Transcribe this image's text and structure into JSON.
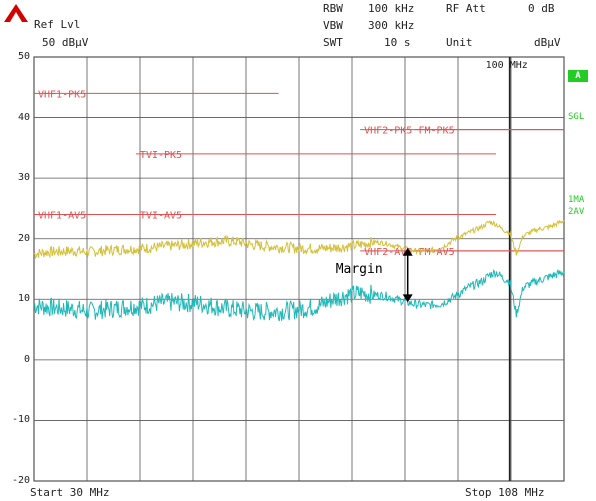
{
  "header": {
    "ref_lvl_label": "Ref Lvl",
    "ref_lvl_value": "50 dBµV",
    "rbw_label": "RBW",
    "rbw_value": "100 kHz",
    "vbw_label": "VBW",
    "vbw_value": "300 kHz",
    "swt_label": "SWT",
    "swt_value": "10 s",
    "rfatt_label": "RF Att",
    "rfatt_value": "0 dB",
    "unit_label": "Unit",
    "unit_value": "dBµV"
  },
  "side_labels": {
    "a": "A",
    "sgl": "SGL",
    "trace1": "1MA",
    "trace2": "2AV"
  },
  "colors": {
    "pk_trace": "#d4c038",
    "av_trace": "#20b8b8",
    "limit": "#e05050",
    "grid": "#555555",
    "side": "#22cc22"
  },
  "chart_data": {
    "type": "line",
    "x_unit": "MHz",
    "xlim": [
      30,
      108
    ],
    "ylim": [
      -20,
      50
    ],
    "yticks": [
      50,
      40,
      30,
      20,
      10,
      0,
      -10,
      -20
    ],
    "ytick_labels": [
      "50",
      "40",
      "30",
      "20",
      "10",
      "0",
      "-10",
      "-20"
    ],
    "x_start_label": "Start 30 MHz",
    "x_stop_label": "Stop 108 MHz",
    "x_marker_label": "100 MHz",
    "x_marker_value": 100,
    "annotation": "Margin",
    "annotation_x": 85,
    "annotation_y_top": 18.5,
    "annotation_y_bottom": 9.5,
    "limit_lines": [
      {
        "name": "VHF1-PK5",
        "x": [
          30,
          66
        ],
        "y": 44
      },
      {
        "name": "VHF2-PK5",
        "x": [
          78,
          108
        ],
        "y": 38
      },
      {
        "name": "FM-PK5",
        "x": [
          86,
          108
        ],
        "y": 38
      },
      {
        "name": "TVI-PK5",
        "x": [
          45,
          98
        ],
        "y": 34
      },
      {
        "name": "VHF1-AV5",
        "x": [
          30,
          66
        ],
        "y": 24
      },
      {
        "name": "TVI-AV5",
        "x": [
          45,
          98
        ],
        "y": 24
      },
      {
        "name": "VHF2-AV5",
        "x": [
          78,
          108
        ],
        "y": 18
      },
      {
        "name": "FM-AV5",
        "x": [
          86,
          108
        ],
        "y": 18
      }
    ],
    "series": [
      {
        "x": [
          30,
          32,
          34,
          36,
          38,
          40,
          42,
          44,
          46,
          48,
          50,
          52,
          54,
          56,
          58,
          60,
          62,
          64,
          66,
          68,
          70,
          72,
          74,
          76,
          78,
          80,
          82,
          84,
          86,
          88,
          90,
          92,
          94,
          96,
          97,
          98,
          99,
          100,
          101,
          102,
          103,
          104,
          106,
          108
        ],
        "y": [
          17.5,
          17.8,
          17.9,
          18.0,
          17.8,
          18.0,
          18.2,
          18.3,
          18.4,
          18.6,
          18.8,
          19.0,
          19.3,
          19.5,
          19.6,
          19.5,
          19.0,
          18.8,
          18.6,
          18.5,
          18.4,
          18.4,
          18.5,
          18.7,
          19.0,
          19.5,
          19.2,
          18.5,
          18.0,
          18.0,
          18.5,
          20.0,
          21.0,
          22.0,
          22.8,
          22.4,
          21.5,
          21.0,
          17.5,
          20.5,
          21.0,
          21.5,
          22.0,
          23.0
        ]
      },
      {
        "x": [
          30,
          32,
          34,
          36,
          38,
          40,
          42,
          44,
          46,
          48,
          50,
          52,
          54,
          56,
          58,
          60,
          62,
          64,
          66,
          68,
          70,
          72,
          74,
          76,
          78,
          80,
          82,
          84,
          86,
          88,
          90,
          92,
          94,
          96,
          97,
          98,
          99,
          100,
          101,
          102,
          103,
          104,
          106,
          108
        ],
        "y": [
          9.0,
          8.7,
          8.5,
          8.4,
          8.0,
          8.3,
          8.5,
          8.8,
          8.9,
          9.3,
          9.5,
          9.4,
          9.4,
          9.0,
          8.5,
          8.3,
          8.0,
          8.0,
          8.0,
          8.2,
          8.5,
          9.0,
          10.0,
          10.7,
          11.0,
          10.8,
          10.5,
          9.8,
          9.2,
          9.0,
          9.3,
          10.5,
          12.0,
          13.0,
          14.0,
          14.5,
          13.5,
          13.0,
          7.5,
          12.0,
          12.5,
          13.0,
          13.8,
          14.5
        ]
      }
    ]
  }
}
